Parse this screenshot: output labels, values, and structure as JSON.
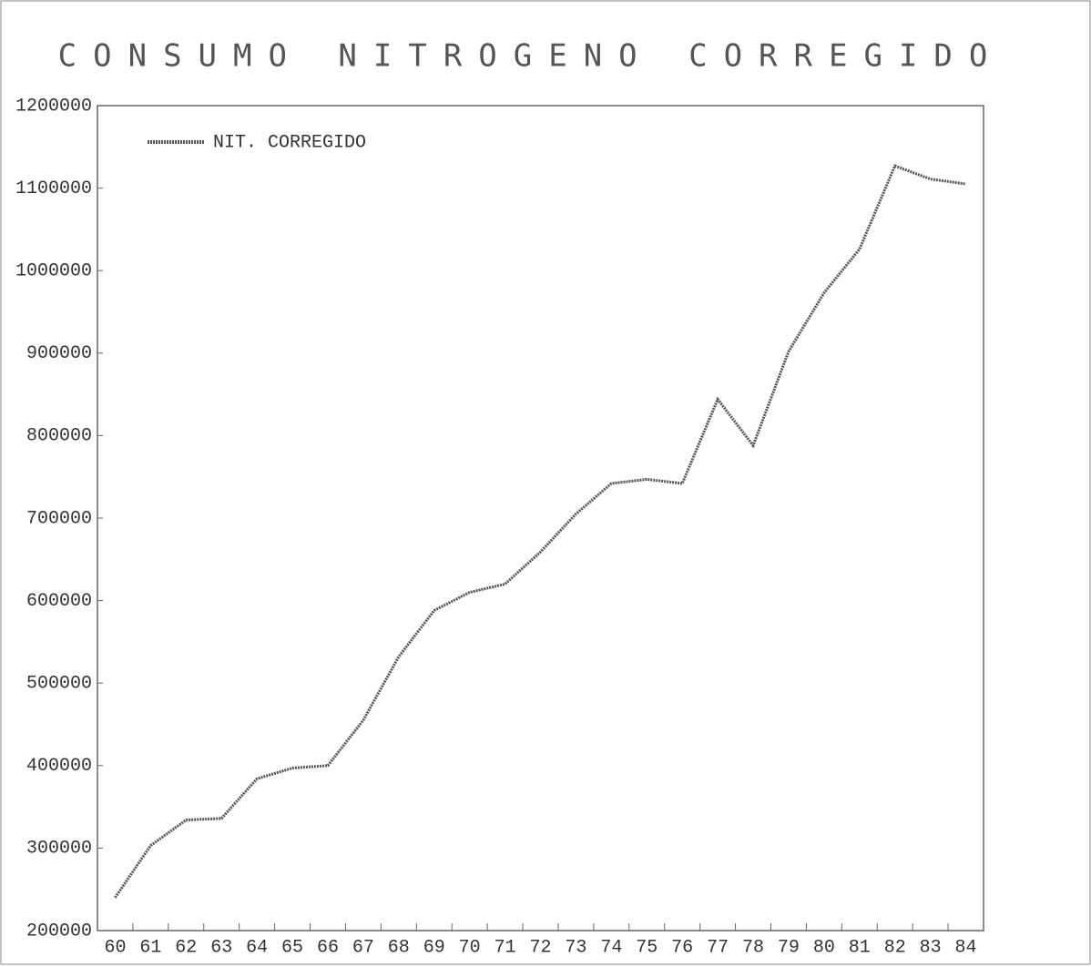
{
  "chart_data": {
    "type": "line",
    "title": "CONSUMO NITROGENO CORREGIDO",
    "categories": [
      "60",
      "61",
      "62",
      "63",
      "64",
      "65",
      "66",
      "67",
      "68",
      "69",
      "70",
      "71",
      "72",
      "73",
      "74",
      "75",
      "76",
      "77",
      "78",
      "79",
      "80",
      "81",
      "82",
      "83",
      "84"
    ],
    "series": [
      {
        "name": "NIT. CORREGIDO",
        "color": "#555555",
        "values": [
          240000,
          303000,
          334000,
          336000,
          384000,
          397000,
          400000,
          455000,
          532000,
          588000,
          610000,
          620000,
          659000,
          705000,
          742000,
          747000,
          742000,
          844000,
          788000,
          902000,
          973000,
          1026000,
          1127000,
          1111000,
          1105000
        ]
      }
    ],
    "ylim": [
      200000,
      1200000
    ],
    "yticks": [
      200000,
      300000,
      400000,
      500000,
      600000,
      700000,
      800000,
      900000,
      1000000,
      1100000,
      1200000
    ],
    "legend": "upper left"
  }
}
